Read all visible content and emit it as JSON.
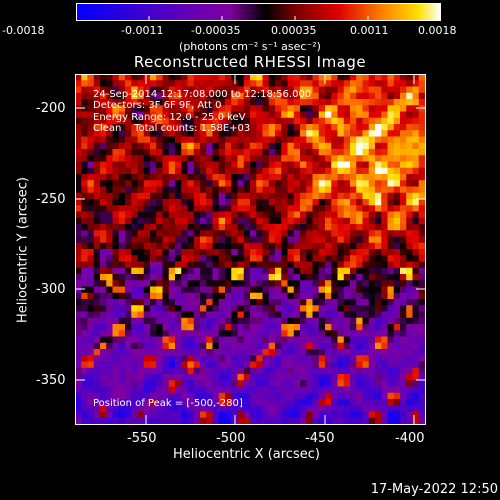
{
  "colorbar": {
    "tick_labels": [
      "-0.0018",
      "-0.0011",
      "-0.00035",
      "0.00035",
      "0.0011",
      "0.0018"
    ],
    "units": "(photons cm⁻² s⁻¹ asec⁻²)"
  },
  "title": "Reconstructed RHESSI Image",
  "info": {
    "time_range": "24-Sep-2014 12:17:08.000 to 12:18:56.000",
    "detectors": "Detectors: 3F 6F 9F, Att 0",
    "energy_range": "Energy Range: 12.0 - 25.0 keV",
    "clean": "Clean    Total counts: 1.58E+03",
    "peak": "Position of Peak = [-500,-280]"
  },
  "x_axis": {
    "title": "Heliocentric X (arcsec)",
    "tick_labels": [
      "-550",
      "-500",
      "-450",
      "-400"
    ]
  },
  "y_axis": {
    "title": "Heliocentric Y (arcsec)",
    "tick_labels": [
      "-200",
      "-250",
      "-300",
      "-350"
    ]
  },
  "footer": "17-May-2022 12:50",
  "colors": {
    "frame": "#ffffff",
    "background": "#000000"
  }
}
